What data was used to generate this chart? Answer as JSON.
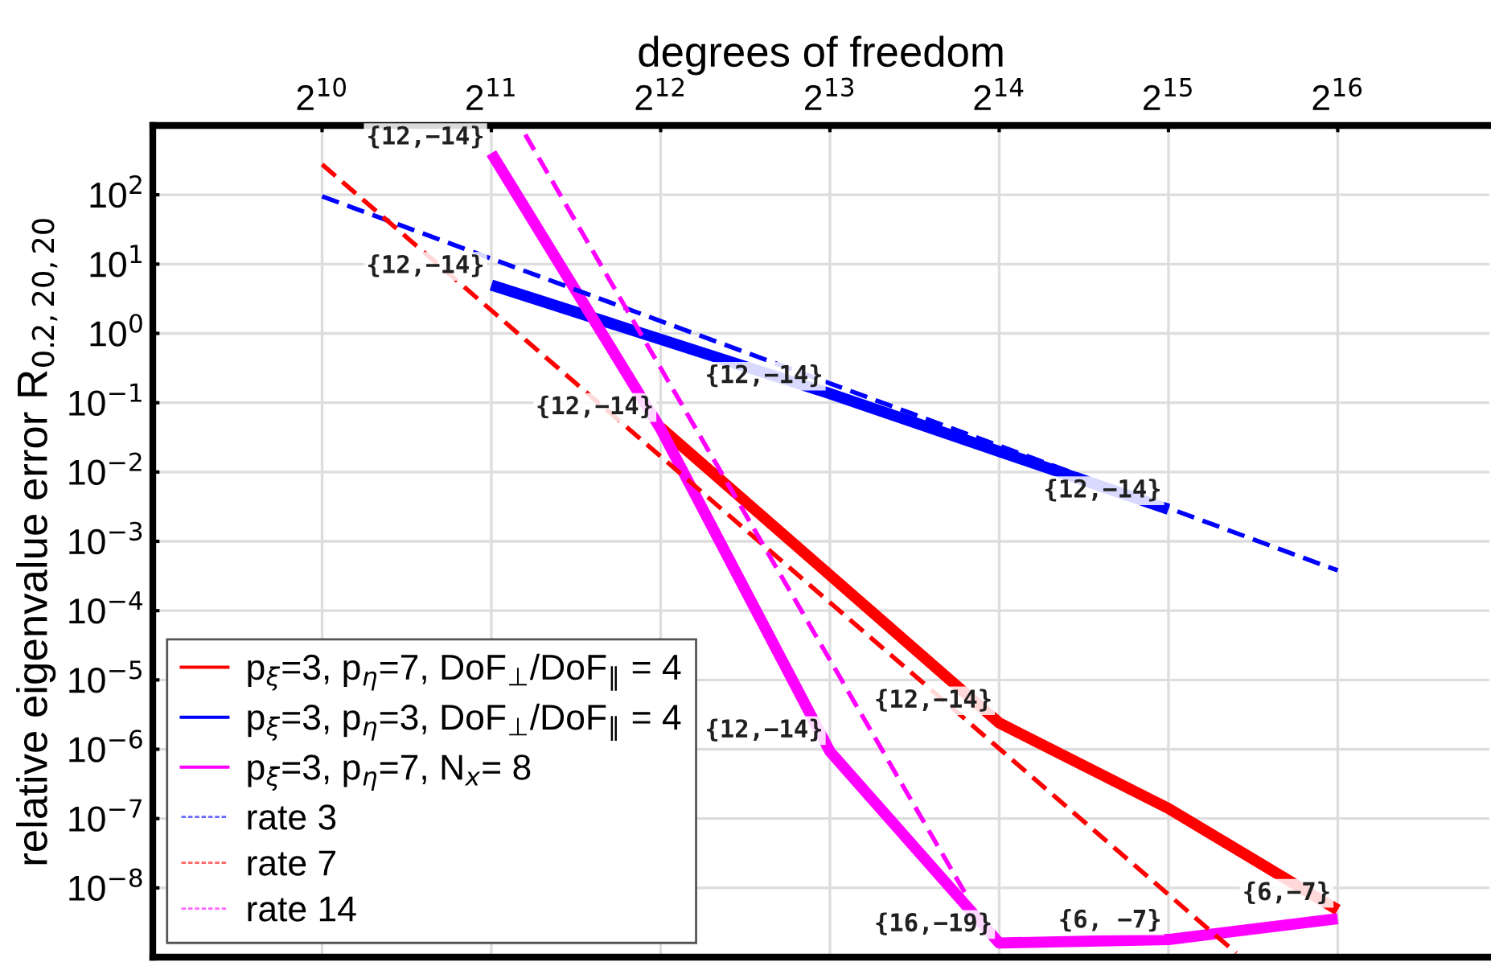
{
  "chart_data": {
    "type": "line",
    "xlabel": "degrees of freedom",
    "ylabel": "relative eigenvalue error R$_{0.2,20,20}$",
    "log": "xy",
    "grid": true,
    "legend": "bottom left",
    "marker": "none",
    "xlim": [
      512,
      122000
    ],
    "ylim": [
      1e-09,
      1000
    ],
    "xticks": [
      {
        "value": 1024,
        "label": "2$^{10}$"
      },
      {
        "value": 2048,
        "label": "2$^{11}$"
      },
      {
        "value": 4096,
        "label": "2$^{12}$"
      },
      {
        "value": 8192,
        "label": "2$^{13}$"
      },
      {
        "value": 16384,
        "label": "2$^{14}$"
      },
      {
        "value": 32768,
        "label": "2$^{15}$"
      },
      {
        "value": 65536,
        "label": "2$^{16}$"
      }
    ],
    "yticks": [
      {
        "value": 1e-08,
        "label": "10$^{−8}$"
      },
      {
        "value": 1e-07,
        "label": "10$^{−7}$"
      },
      {
        "value": 1e-06,
        "label": "10$^{−6}$"
      },
      {
        "value": 1e-05,
        "label": "10$^{−5}$"
      },
      {
        "value": 0.0001,
        "label": "10$^{−4}$"
      },
      {
        "value": 0.001,
        "label": "10$^{−3}$"
      },
      {
        "value": 0.01,
        "label": "10$^{−2}$"
      },
      {
        "value": 0.1,
        "label": "10$^{−1}$"
      },
      {
        "value": 1,
        "label": "10$^{0}$"
      },
      {
        "value": 10,
        "label": "10$^{1}$"
      },
      {
        "value": 100,
        "label": "10$^{2}$"
      }
    ],
    "series": [
      {
        "name": "p$_{ξ}$=3, p$_{η}$=7, DoF$_{⊥}$/DoF$_{∥}$ = 4",
        "color": "#ff0000",
        "line_style": "solid",
        "x": [
          4096,
          16384,
          32768,
          65536
        ],
        "values": [
          0.044,
          2.4e-06,
          1.4e-07,
          4.8e-09
        ]
      },
      {
        "name": "p$_{ξ}$=3, p$_{η}$=3, DoF$_{⊥}$/DoF$_{∥}$ = 4",
        "color": "#0000ff",
        "line_style": "solid",
        "x": [
          2048,
          8192,
          32768
        ],
        "values": [
          5.0,
          0.135,
          0.0029
        ]
      },
      {
        "name": "p$_{ξ}$=3, p$_{η}$=7, N$_{x}$= 8",
        "color": "#ff00ff",
        "line_style": "solid",
        "x": [
          2048,
          4096,
          8192,
          16384,
          32768,
          65536
        ],
        "values": [
          400,
          0.042,
          9.3e-07,
          1.6e-09,
          1.8e-09,
          3.6e-09
        ]
      },
      {
        "name": "rate 3",
        "color": "#0000ff",
        "line_style": "dashed",
        "x": [
          1024,
          65536
        ],
        "values": [
          95,
          0.00038
        ]
      },
      {
        "name": "rate 7",
        "color": "#ff0000",
        "line_style": "dashed",
        "x": [
          1024,
          43238
        ],
        "values": [
          275,
          1.15e-09
        ]
      },
      {
        "name": "rate 14",
        "color": "#ff00ff",
        "line_style": "dashed",
        "x": [
          2353,
          14263
        ],
        "values": [
          740,
          8.3e-09
        ]
      }
    ],
    "annotations": [
      {
        "text": "{12,−14}",
        "x": 2048,
        "y": 360
      },
      {
        "text": "{12,−14}",
        "x": 2048,
        "y": 5
      },
      {
        "text": "{12,−14}",
        "x": 4096,
        "y": 0.046
      },
      {
        "text": "{12,−14}",
        "x": 8192,
        "y": 0.13
      },
      {
        "text": "{12,−14}",
        "x": 32768,
        "y": 0.0029
      },
      {
        "text": "{12,−14}",
        "x": 16384,
        "y": 2.7e-06
      },
      {
        "text": "{12,−14}",
        "x": 8192,
        "y": 1e-06
      },
      {
        "text": "{16,−19}",
        "x": 16384,
        "y": 1.6e-09
      },
      {
        "text": "{6, −7}",
        "x": 32768,
        "y": 1.8e-09
      },
      {
        "text": "{6,−7}",
        "x": 65536,
        "y": 4.5e-09
      }
    ]
  }
}
